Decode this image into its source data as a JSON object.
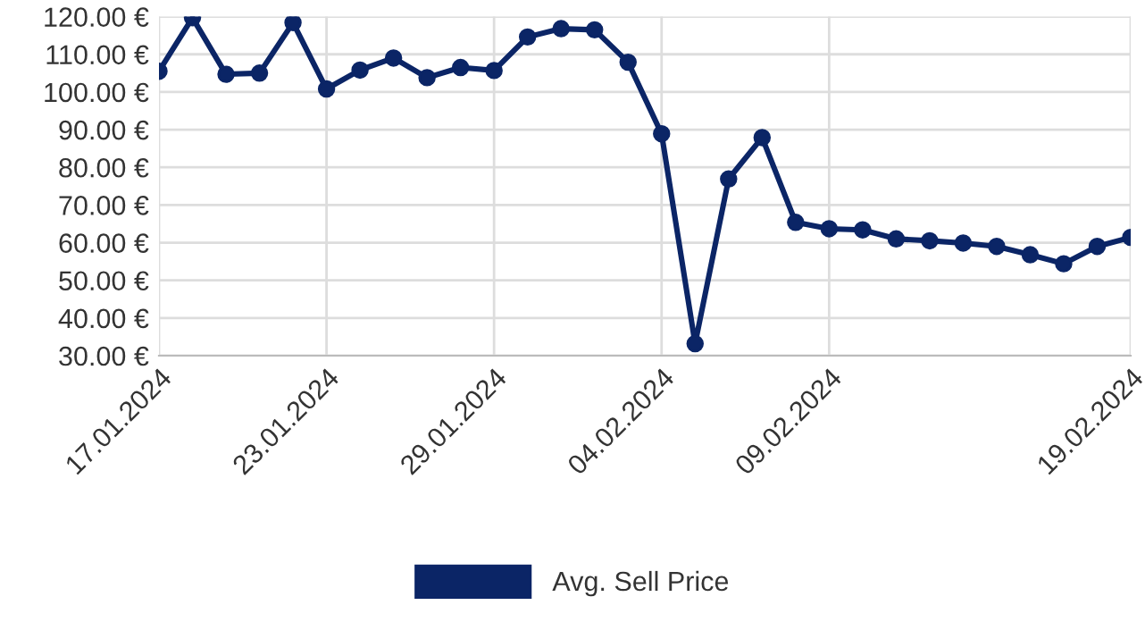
{
  "chart_data": {
    "type": "line",
    "categories": [
      "17.01.2024",
      null,
      null,
      null,
      null,
      "23.01.2024",
      null,
      null,
      null,
      null,
      "29.01.2024",
      null,
      null,
      null,
      null,
      "04.02.2024",
      null,
      null,
      null,
      null,
      "09.02.2024",
      null,
      null,
      null,
      null,
      null,
      null,
      null,
      null,
      "19.02.2024"
    ],
    "series": [
      {
        "name": "Avg. Sell Price",
        "color": "#0b2566",
        "values": [
          105.5,
          119.7,
          104.7,
          105,
          118.4,
          100.8,
          105.8,
          109,
          103.8,
          106.5,
          105.7,
          114.6,
          116.8,
          116.5,
          107.9,
          88.9,
          33.2,
          76.9,
          87.9,
          65.4,
          63.7,
          63.4,
          61.0,
          60.5,
          59.9,
          59.0,
          56.8,
          54.4,
          59.0,
          61.4
        ]
      }
    ],
    "ylim": [
      30,
      120
    ],
    "yticks": [
      {
        "value": 30,
        "label": "30.00 €"
      },
      {
        "value": 40,
        "label": "40.00 €"
      },
      {
        "value": 50,
        "label": "50.00 €"
      },
      {
        "value": 60,
        "label": "60.00 €"
      },
      {
        "value": 70,
        "label": "70.00 €"
      },
      {
        "value": 80,
        "label": "80.00 €"
      },
      {
        "value": 90,
        "label": "90.00 €"
      },
      {
        "value": 100,
        "label": "100.00 €"
      },
      {
        "value": 110,
        "label": "110.00 €"
      },
      {
        "value": 120,
        "label": "120.00 €"
      }
    ],
    "grid": true,
    "legend": "bottom",
    "marker": "circle",
    "line_style": "solid"
  }
}
